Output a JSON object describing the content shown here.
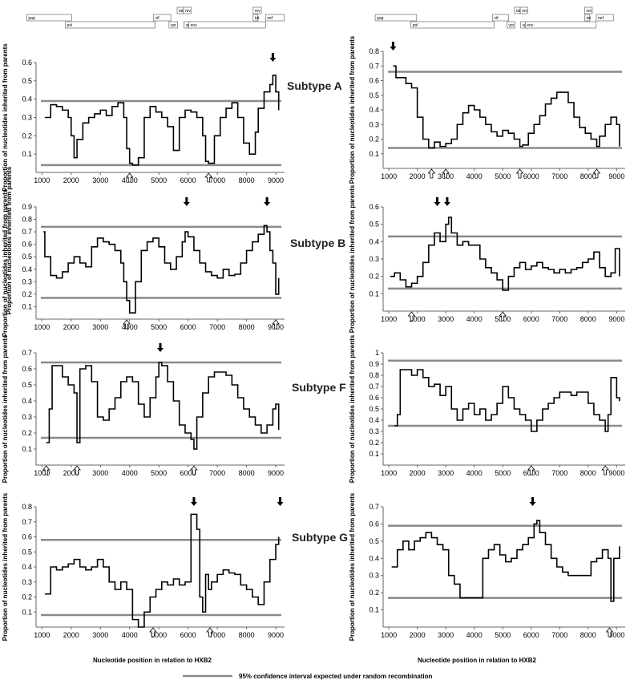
{
  "figure": {
    "ylabel": "Proportion of nucleotides inherited from parents",
    "xlabel": "Nucleotide position in relation to HXB2",
    "legend_label": "95% confidence interval expected under random recombination",
    "colors": {
      "observed": "#000000",
      "ci": "#8a8a8a",
      "frame": "#666666"
    }
  },
  "genome_map": {
    "genes": [
      {
        "name": "gag",
        "start": 790,
        "end": 2292,
        "row": 0
      },
      {
        "name": "pol",
        "start": 2085,
        "end": 5096,
        "row": 1
      },
      {
        "name": "vif",
        "start": 5041,
        "end": 5619,
        "row": 0
      },
      {
        "name": "tat",
        "start": 5831,
        "end": 6045,
        "row": -1
      },
      {
        "name": "rev",
        "start": 6045,
        "end": 6310,
        "row": -1
      },
      {
        "name": "vpr",
        "start": 5559,
        "end": 5850,
        "row": 1
      },
      {
        "name": "vpu",
        "start": 6062,
        "end": 6310,
        "row": 1
      },
      {
        "name": "env",
        "start": 6225,
        "end": 8795,
        "row": 1
      },
      {
        "name": "rev",
        "start": 8379,
        "end": 8653,
        "row": -1
      },
      {
        "name": "tat",
        "start": 8379,
        "end": 8469,
        "row": 0
      },
      {
        "name": "nef",
        "start": 8797,
        "end": 9417,
        "row": 0
      }
    ]
  },
  "chart_data": [
    {
      "type": "line",
      "panel": "A-left",
      "subtitle": "Subtype A",
      "xlim": [
        800,
        9300
      ],
      "ylim": [
        0,
        0.6
      ],
      "xticks": [
        1000,
        2000,
        3000,
        4000,
        5000,
        6000,
        7000,
        8000,
        9000
      ],
      "yticks": [
        0.1,
        0.2,
        0.3,
        0.4,
        0.5,
        0.6
      ],
      "ci_upper": 0.39,
      "ci_lower": 0.04,
      "series": [
        {
          "x": [
            1100,
            1300,
            1500,
            1700,
            1900,
            2000,
            2100,
            2200,
            2400,
            2600,
            2800,
            3000,
            3200,
            3400,
            3600,
            3800,
            3900,
            4000,
            4100,
            4300,
            4500,
            4700,
            4900,
            5100,
            5300,
            5500,
            5700,
            5900,
            6100,
            6300,
            6500,
            6600,
            6700,
            6900,
            7100,
            7300,
            7500,
            7700,
            7900,
            8100,
            8300,
            8400,
            8600,
            8800,
            8900,
            9000,
            9100
          ],
          "y": [
            0.3,
            0.37,
            0.36,
            0.34,
            0.3,
            0.2,
            0.08,
            0.18,
            0.27,
            0.3,
            0.32,
            0.34,
            0.31,
            0.36,
            0.38,
            0.3,
            0.13,
            0.05,
            0.04,
            0.08,
            0.3,
            0.36,
            0.33,
            0.3,
            0.25,
            0.12,
            0.3,
            0.34,
            0.33,
            0.3,
            0.2,
            0.06,
            0.05,
            0.2,
            0.3,
            0.35,
            0.38,
            0.3,
            0.16,
            0.1,
            0.22,
            0.35,
            0.44,
            0.48,
            0.53,
            0.44,
            0.34
          ]
        }
      ],
      "arrows_down": [
        8900
      ],
      "arrows_up": [
        4000,
        6700
      ]
    },
    {
      "type": "line",
      "panel": "A-right",
      "subtitle": "",
      "xlim": [
        800,
        9300
      ],
      "ylim": [
        0,
        0.8
      ],
      "xticks": [
        1000,
        2000,
        3000,
        4000,
        5000,
        6000,
        7000,
        8000,
        9000
      ],
      "yticks": [
        0.1,
        0.2,
        0.3,
        0.4,
        0.5,
        0.6,
        0.7,
        0.8
      ],
      "ci_upper": 0.66,
      "ci_lower": 0.14,
      "series": [
        {
          "x": [
            1150,
            1250,
            1400,
            1600,
            1800,
            2000,
            2200,
            2400,
            2600,
            2800,
            3000,
            3200,
            3400,
            3600,
            3800,
            4000,
            4200,
            4400,
            4600,
            4800,
            5000,
            5200,
            5400,
            5600,
            5700,
            5900,
            6100,
            6300,
            6500,
            6700,
            6900,
            7100,
            7300,
            7500,
            7700,
            7900,
            8100,
            8300,
            8400,
            8600,
            8800,
            9000,
            9100
          ],
          "y": [
            0.7,
            0.62,
            0.62,
            0.58,
            0.55,
            0.35,
            0.2,
            0.14,
            0.18,
            0.15,
            0.17,
            0.2,
            0.3,
            0.38,
            0.43,
            0.4,
            0.35,
            0.3,
            0.25,
            0.22,
            0.26,
            0.24,
            0.2,
            0.15,
            0.16,
            0.24,
            0.3,
            0.36,
            0.44,
            0.48,
            0.52,
            0.52,
            0.45,
            0.35,
            0.28,
            0.24,
            0.2,
            0.15,
            0.22,
            0.3,
            0.35,
            0.3,
            0.15
          ]
        }
      ],
      "arrows_down": [
        1150
      ],
      "arrows_up": [
        2500,
        3000,
        5600,
        8300
      ]
    },
    {
      "type": "line",
      "panel": "B-left",
      "subtitle": "Subtype B",
      "xlim": [
        800,
        9300
      ],
      "ylim": [
        0,
        0.9
      ],
      "xticks": [
        1000,
        2000,
        3000,
        4000,
        5000,
        6000,
        7000,
        8000,
        9000
      ],
      "yticks": [
        0.1,
        0.2,
        0.3,
        0.4,
        0.5,
        0.6,
        0.7,
        0.8,
        0.9
      ],
      "ci_upper": 0.74,
      "ci_lower": 0.17,
      "series": [
        {
          "x": [
            1050,
            1100,
            1300,
            1500,
            1700,
            1900,
            2100,
            2300,
            2500,
            2700,
            2900,
            3100,
            3300,
            3500,
            3700,
            3800,
            3900,
            4000,
            4200,
            4400,
            4600,
            4800,
            5000,
            5200,
            5400,
            5600,
            5800,
            5900,
            6000,
            6200,
            6400,
            6600,
            6800,
            7000,
            7200,
            7400,
            7600,
            7800,
            8000,
            8200,
            8400,
            8600,
            8700,
            8800,
            8900,
            9000,
            9100
          ],
          "y": [
            0.7,
            0.5,
            0.35,
            0.33,
            0.38,
            0.45,
            0.5,
            0.45,
            0.42,
            0.58,
            0.65,
            0.62,
            0.6,
            0.55,
            0.45,
            0.3,
            0.15,
            0.05,
            0.3,
            0.55,
            0.62,
            0.65,
            0.58,
            0.45,
            0.4,
            0.5,
            0.62,
            0.7,
            0.66,
            0.55,
            0.45,
            0.38,
            0.35,
            0.33,
            0.4,
            0.35,
            0.36,
            0.45,
            0.55,
            0.62,
            0.68,
            0.75,
            0.7,
            0.55,
            0.45,
            0.2,
            0.33
          ]
        }
      ],
      "arrows_down": [
        5950,
        8700
      ],
      "arrows_up": [
        3900,
        9000
      ]
    },
    {
      "type": "line",
      "panel": "B-right",
      "subtitle": "",
      "xlim": [
        800,
        9300
      ],
      "ylim": [
        0,
        0.6
      ],
      "xticks": [
        1000,
        2000,
        3000,
        4000,
        5000,
        6000,
        7000,
        8000,
        9000
      ],
      "yticks": [
        0.1,
        0.2,
        0.3,
        0.4,
        0.5,
        0.6
      ],
      "ci_upper": 0.43,
      "ci_lower": 0.13,
      "series": [
        {
          "x": [
            1050,
            1200,
            1400,
            1600,
            1800,
            2000,
            2200,
            2400,
            2600,
            2800,
            3000,
            3100,
            3200,
            3400,
            3600,
            3800,
            4000,
            4200,
            4400,
            4600,
            4800,
            5000,
            5200,
            5400,
            5600,
            5800,
            6000,
            6200,
            6400,
            6600,
            6800,
            7000,
            7200,
            7400,
            7600,
            7800,
            8000,
            8200,
            8400,
            8600,
            8800,
            8950,
            9100
          ],
          "y": [
            0.2,
            0.22,
            0.18,
            0.14,
            0.16,
            0.2,
            0.28,
            0.38,
            0.45,
            0.4,
            0.5,
            0.54,
            0.45,
            0.38,
            0.4,
            0.38,
            0.38,
            0.3,
            0.25,
            0.22,
            0.18,
            0.12,
            0.2,
            0.25,
            0.28,
            0.24,
            0.26,
            0.28,
            0.25,
            0.24,
            0.22,
            0.24,
            0.22,
            0.24,
            0.25,
            0.28,
            0.3,
            0.34,
            0.25,
            0.2,
            0.22,
            0.36,
            0.2
          ]
        }
      ],
      "arrows_down": [
        2700,
        3050
      ],
      "arrows_up": [
        1800,
        5000
      ]
    },
    {
      "type": "line",
      "panel": "F-left",
      "subtitle": "Subtype F",
      "xlim": [
        800,
        9300
      ],
      "ylim": [
        0,
        0.7
      ],
      "xticks": [
        1000,
        2000,
        3000,
        4000,
        5000,
        6000,
        7000,
        8000,
        9000
      ],
      "yticks": [
        0.1,
        0.2,
        0.3,
        0.4,
        0.5,
        0.6,
        0.7
      ],
      "ci_upper": 0.64,
      "ci_lower": 0.17,
      "series": [
        {
          "x": [
            1150,
            1250,
            1350,
            1500,
            1700,
            1900,
            2100,
            2200,
            2300,
            2500,
            2700,
            2900,
            3100,
            3300,
            3500,
            3700,
            3900,
            4100,
            4300,
            4500,
            4700,
            4900,
            5000,
            5100,
            5300,
            5500,
            5700,
            5900,
            6100,
            6200,
            6300,
            6500,
            6700,
            6900,
            7100,
            7300,
            7500,
            7700,
            7900,
            8100,
            8300,
            8500,
            8700,
            8900,
            9000,
            9100
          ],
          "y": [
            0.14,
            0.35,
            0.62,
            0.62,
            0.55,
            0.5,
            0.45,
            0.14,
            0.6,
            0.62,
            0.52,
            0.3,
            0.28,
            0.35,
            0.42,
            0.52,
            0.55,
            0.52,
            0.38,
            0.3,
            0.42,
            0.55,
            0.64,
            0.62,
            0.52,
            0.4,
            0.25,
            0.2,
            0.16,
            0.1,
            0.3,
            0.45,
            0.55,
            0.58,
            0.58,
            0.56,
            0.5,
            0.42,
            0.35,
            0.3,
            0.25,
            0.2,
            0.25,
            0.35,
            0.38,
            0.22
          ]
        }
      ],
      "arrows_down": [
        5050
      ],
      "arrows_up": [
        1150,
        2200,
        6200
      ]
    },
    {
      "type": "line",
      "panel": "F-right",
      "subtitle": "",
      "xlim": [
        800,
        9300
      ],
      "ylim": [
        0,
        1.0
      ],
      "xticks": [
        1000,
        2000,
        3000,
        4000,
        5000,
        6000,
        7000,
        8000,
        9000
      ],
      "yticks": [
        0.1,
        0.2,
        0.3,
        0.4,
        0.5,
        0.6,
        0.7,
        0.8,
        0.9,
        1
      ],
      "ci_upper": 0.93,
      "ci_lower": 0.35,
      "series": [
        {
          "x": [
            1200,
            1300,
            1400,
            1600,
            1800,
            2000,
            2200,
            2400,
            2600,
            2800,
            3000,
            3200,
            3400,
            3600,
            3800,
            4000,
            4200,
            4400,
            4600,
            4800,
            5000,
            5200,
            5400,
            5600,
            5800,
            6000,
            6200,
            6400,
            6600,
            6800,
            7000,
            7200,
            7400,
            7600,
            7800,
            8000,
            8200,
            8400,
            8600,
            8700,
            8800,
            9000,
            9100
          ],
          "y": [
            0.35,
            0.45,
            0.85,
            0.85,
            0.8,
            0.85,
            0.78,
            0.7,
            0.72,
            0.62,
            0.7,
            0.5,
            0.4,
            0.5,
            0.55,
            0.45,
            0.5,
            0.4,
            0.45,
            0.55,
            0.7,
            0.6,
            0.5,
            0.45,
            0.4,
            0.3,
            0.4,
            0.5,
            0.55,
            0.6,
            0.65,
            0.65,
            0.62,
            0.65,
            0.65,
            0.55,
            0.45,
            0.4,
            0.3,
            0.45,
            0.78,
            0.6,
            0.57
          ]
        }
      ],
      "arrows_down": [],
      "arrows_up": [
        6000,
        8600
      ]
    },
    {
      "type": "line",
      "panel": "G-left",
      "subtitle": "Subtype G",
      "xlim": [
        800,
        9300
      ],
      "ylim": [
        0,
        0.8
      ],
      "xticks": [
        1000,
        2000,
        3000,
        4000,
        5000,
        6000,
        7000,
        8000,
        9000
      ],
      "yticks": [
        0.1,
        0.2,
        0.3,
        0.4,
        0.5,
        0.6,
        0.7,
        0.8
      ],
      "ci_upper": 0.58,
      "ci_lower": 0.08,
      "series": [
        {
          "x": [
            1100,
            1300,
            1500,
            1700,
            1900,
            2100,
            2300,
            2500,
            2700,
            2900,
            3100,
            3300,
            3500,
            3700,
            3900,
            4100,
            4300,
            4500,
            4700,
            4900,
            5100,
            5300,
            5500,
            5700,
            5900,
            6100,
            6300,
            6400,
            6500,
            6600,
            6700,
            6800,
            7000,
            7200,
            7400,
            7600,
            7800,
            8000,
            8200,
            8400,
            8600,
            8800,
            9000,
            9100
          ],
          "y": [
            0.22,
            0.4,
            0.38,
            0.4,
            0.42,
            0.45,
            0.4,
            0.38,
            0.4,
            0.45,
            0.4,
            0.3,
            0.25,
            0.3,
            0.25,
            0.05,
            0.0,
            0.1,
            0.2,
            0.25,
            0.3,
            0.28,
            0.32,
            0.28,
            0.3,
            0.75,
            0.65,
            0.2,
            0.1,
            0.35,
            0.25,
            0.3,
            0.35,
            0.38,
            0.36,
            0.35,
            0.28,
            0.25,
            0.2,
            0.15,
            0.3,
            0.45,
            0.55,
            0.6
          ]
        }
      ],
      "arrows_down": [
        6200,
        9150
      ],
      "arrows_up": [
        4800,
        6750
      ]
    },
    {
      "type": "line",
      "panel": "G-right",
      "subtitle": "",
      "xlim": [
        800,
        9300
      ],
      "ylim": [
        0,
        0.7
      ],
      "xticks": [
        1000,
        2000,
        3000,
        4000,
        5000,
        6000,
        7000,
        8000,
        9000
      ],
      "yticks": [
        0.1,
        0.2,
        0.3,
        0.4,
        0.5,
        0.6,
        0.7
      ],
      "ci_upper": 0.59,
      "ci_lower": 0.17,
      "series": [
        {
          "x": [
            1100,
            1300,
            1500,
            1700,
            1900,
            2100,
            2300,
            2500,
            2700,
            2900,
            3100,
            3300,
            3500,
            3700,
            3900,
            4100,
            4300,
            4500,
            4700,
            4900,
            5100,
            5300,
            5500,
            5700,
            5900,
            6100,
            6200,
            6300,
            6500,
            6700,
            6900,
            7100,
            7300,
            7500,
            7700,
            7900,
            8100,
            8300,
            8500,
            8700,
            8800,
            8900,
            9100
          ],
          "y": [
            0.35,
            0.45,
            0.5,
            0.45,
            0.5,
            0.52,
            0.55,
            0.52,
            0.48,
            0.45,
            0.3,
            0.25,
            0.17,
            0.17,
            0.17,
            0.17,
            0.4,
            0.45,
            0.48,
            0.42,
            0.38,
            0.4,
            0.45,
            0.48,
            0.52,
            0.6,
            0.62,
            0.55,
            0.48,
            0.4,
            0.35,
            0.32,
            0.3,
            0.3,
            0.3,
            0.3,
            0.38,
            0.4,
            0.45,
            0.4,
            0.15,
            0.4,
            0.47
          ]
        }
      ],
      "arrows_down": [
        6050
      ],
      "arrows_up": [
        8750
      ]
    }
  ]
}
